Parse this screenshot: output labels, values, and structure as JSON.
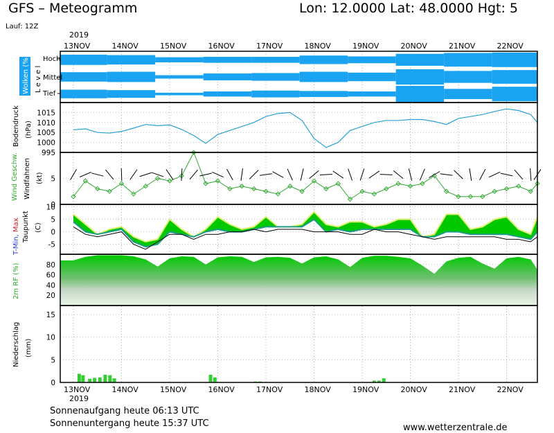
{
  "header": {
    "title": "GFS – Meteogramm",
    "coords": "Lon: 12.0000 Lat: 48.0000 Hgt: 5",
    "run": "Lauf: 12Z",
    "year_top": "2019"
  },
  "footer": {
    "year_bottom": "2019",
    "sunrise": "Sonnenaufgang heute 06:13 UTC",
    "sunset": "Sonnenuntergang heute 15:37 UTC",
    "website": "www.wetterzentrale.de"
  },
  "colors": {
    "cloud": "#1aa3f0",
    "pressure": "#2a9fd6",
    "wind": "#2ea82e",
    "tmax": "#d9f06a",
    "tmin": "#1f9c8c",
    "temp_fill": "#00c800",
    "humidity_top": "#00c800",
    "precip": "#33cc33",
    "axis": "#000000"
  },
  "chart_data": [
    {
      "type": "heatmap",
      "ylabel": "Wolken (%)",
      "ylabel2": "L e v e l",
      "levels": [
        "Hoch",
        "Mittel",
        "Tief"
      ],
      "categories": [
        "13NOV",
        "14NOV",
        "15NOV",
        "16NOV",
        "17NOV",
        "18NOV",
        "19NOV",
        "20NOV",
        "21NOV",
        "22NOV"
      ],
      "series": [
        {
          "name": "Hoch",
          "values": [
            60,
            55,
            30,
            35,
            35,
            50,
            40,
            70,
            80,
            85
          ]
        },
        {
          "name": "Mittel",
          "values": [
            55,
            60,
            20,
            40,
            45,
            60,
            50,
            90,
            70,
            80
          ]
        },
        {
          "name": "Tief",
          "values": [
            50,
            45,
            15,
            30,
            40,
            35,
            30,
            95,
            60,
            85
          ]
        }
      ]
    },
    {
      "type": "line",
      "ylabel": "Bodendruck",
      "unit": "(hPa)",
      "ylim": [
        995,
        1020
      ],
      "yticks": [
        995,
        1000,
        1005,
        1010,
        1015
      ],
      "x": [
        0,
        0.25,
        0.5,
        0.75,
        1,
        1.25,
        1.5,
        1.75,
        2,
        2.25,
        2.5,
        2.75,
        3,
        3.25,
        3.5,
        3.75,
        4,
        4.25,
        4.5,
        4.75,
        5,
        5.25,
        5.5,
        5.75,
        6,
        6.25,
        6.5,
        6.75,
        7,
        7.25,
        7.5,
        7.75,
        8,
        8.25,
        8.5,
        8.75,
        9,
        9.25,
        9.5,
        9.75
      ],
      "values": [
        1006.3,
        1006.8,
        1005,
        1004.7,
        1005.5,
        1007.2,
        1009,
        1008.4,
        1008.8,
        1006.5,
        1003.5,
        999.5,
        1004,
        1006,
        1008,
        1010,
        1013,
        1014.5,
        1015,
        1011,
        1002,
        997.5,
        1000,
        1006,
        1008,
        1010,
        1011,
        1011,
        1011.5,
        1011.5,
        1010.5,
        1009,
        1012,
        1013,
        1014,
        1015.5,
        1016.8,
        1016,
        1014,
        1010
      ]
    },
    {
      "type": "line",
      "ylabel": "Wind Geschw.",
      "ylabel2": "Windfahnen",
      "unit": "(kt)",
      "ylim": [
        0,
        10
      ],
      "yticks": [
        0,
        5
      ],
      "x": [
        0,
        0.25,
        0.5,
        0.75,
        1,
        1.25,
        1.5,
        1.75,
        2,
        2.25,
        2.5,
        2.75,
        3,
        3.25,
        3.5,
        3.75,
        4,
        4.25,
        4.5,
        4.75,
        5,
        5.25,
        5.5,
        5.75,
        6,
        6.25,
        6.5,
        6.75,
        7,
        7.25,
        7.5,
        7.75,
        8,
        8.25,
        8.5,
        8.75,
        9,
        9.25,
        9.5,
        9.75
      ],
      "values": [
        1.5,
        4.5,
        3,
        2.5,
        4,
        2,
        3.5,
        5,
        4.5,
        5.5,
        10,
        4,
        4.5,
        3,
        3.5,
        3,
        2.5,
        2,
        3.5,
        2.5,
        4.5,
        3,
        4,
        1,
        2.5,
        2,
        3,
        4,
        3.5,
        4,
        5.5,
        2.5,
        1.5,
        1.5,
        1.5,
        2.5,
        3,
        3.5,
        2.5,
        4
      ]
    },
    {
      "type": "area",
      "ylabel": "T-Min, Max",
      "ylabel2": "Taupunkt",
      "unit": "(C)",
      "ylim": [
        -9,
        11
      ],
      "yticks": [
        -5,
        0,
        5,
        10
      ],
      "x": [
        0,
        0.25,
        0.5,
        0.75,
        1,
        1.25,
        1.5,
        1.75,
        2,
        2.25,
        2.5,
        2.75,
        3,
        3.25,
        3.5,
        3.75,
        4,
        4.25,
        4.5,
        4.75,
        5,
        5.25,
        5.5,
        5.75,
        6,
        6.25,
        6.5,
        6.75,
        7,
        7.25,
        7.5,
        7.75,
        8,
        8.25,
        8.5,
        8.75,
        9,
        9.25,
        9.5,
        9.75
      ],
      "series": [
        {
          "name": "Max",
          "values": [
            7,
            3,
            -1,
            1,
            2,
            -2,
            -4,
            -3,
            5,
            1,
            -2,
            1,
            6,
            3,
            1,
            2,
            6,
            2,
            2,
            3,
            8,
            3,
            2,
            4,
            4,
            2,
            3,
            5,
            5,
            -2,
            -1,
            7,
            7,
            1,
            2,
            5,
            6,
            1,
            -1,
            6
          ]
        },
        {
          "name": "Min",
          "values": [
            4,
            0,
            -1,
            0,
            1,
            -4,
            -6,
            -5,
            0,
            -1,
            -2,
            0,
            1,
            0,
            0,
            1,
            2,
            2,
            2,
            2,
            5,
            0,
            1,
            0,
            1,
            1,
            1,
            1,
            1,
            -2,
            -2,
            0,
            0,
            -1,
            -1,
            -1,
            -1,
            -2,
            -3,
            0
          ]
        },
        {
          "name": "Taupunkt",
          "values": [
            2,
            -1,
            -2,
            -1,
            0,
            -5,
            -7,
            -4,
            -1,
            -1,
            -3,
            -1,
            -1,
            0,
            0,
            1,
            0,
            1,
            1,
            1,
            0,
            0,
            0,
            -1,
            -1,
            1,
            0,
            0,
            -1,
            -2,
            -3,
            -2,
            -2,
            -2,
            -2,
            -2,
            -3,
            -3,
            -4,
            -2
          ]
        }
      ]
    },
    {
      "type": "area",
      "ylabel": "2m RF (%)",
      "ylim": [
        0,
        100
      ],
      "yticks": [
        20,
        40,
        60,
        80
      ],
      "x": [
        0,
        0.25,
        0.5,
        0.75,
        1,
        1.25,
        1.5,
        1.75,
        2,
        2.25,
        2.5,
        2.75,
        3,
        3.25,
        3.5,
        3.75,
        4,
        4.25,
        4.5,
        4.75,
        5,
        5.25,
        5.5,
        5.75,
        6,
        6.25,
        6.5,
        6.75,
        7,
        7.25,
        7.5,
        7.75,
        8,
        8.25,
        8.5,
        8.75,
        9,
        9.25,
        9.5,
        9.75
      ],
      "values": [
        88,
        95,
        98,
        98,
        98,
        96,
        90,
        76,
        92,
        96,
        95,
        80,
        94,
        96,
        95,
        85,
        94,
        95,
        93,
        82,
        94,
        96,
        90,
        75,
        93,
        97,
        97,
        95,
        92,
        78,
        62,
        86,
        93,
        95,
        82,
        72,
        92,
        95,
        90,
        70
      ]
    },
    {
      "type": "bar",
      "ylabel": "Niederschlag",
      "unit": "(mm)",
      "ylim": [
        0,
        17
      ],
      "yticks": [
        0,
        5,
        10,
        15
      ],
      "categories": [
        "13NOV",
        "14NOV",
        "15NOV",
        "16NOV",
        "17NOV",
        "18NOV",
        "19NOV",
        "20NOV",
        "21NOV",
        "22NOV"
      ],
      "x": [
        0.12,
        0.2,
        0.34,
        0.44,
        0.55,
        0.66,
        0.76,
        0.85,
        2.85,
        2.94,
        3.78,
        3.88,
        6.25,
        6.35,
        6.45
      ],
      "values": [
        1.9,
        1.6,
        0.8,
        1.0,
        1.1,
        1.7,
        1.6,
        0.9,
        1.7,
        1.1,
        0.2,
        0.2,
        0.4,
        0.4,
        0.9
      ]
    }
  ]
}
